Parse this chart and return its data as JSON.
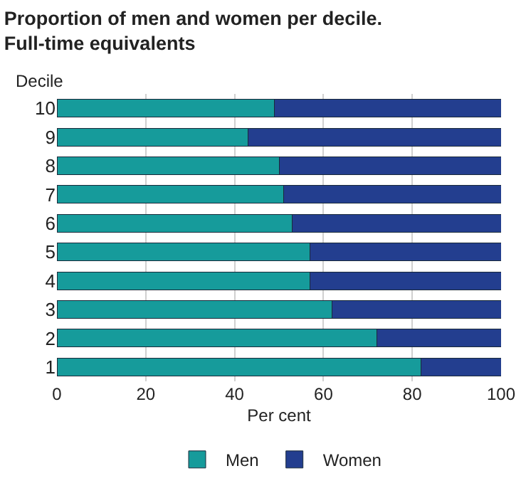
{
  "chart_data": {
    "type": "bar",
    "orientation": "horizontal",
    "stacked": true,
    "title": "Proportion of men and women per decile. Full-time equivalents",
    "xlabel": "Per cent",
    "ylabel": "Decile",
    "categories": [
      "10",
      "9",
      "8",
      "7",
      "6",
      "5",
      "4",
      "3",
      "2",
      "1"
    ],
    "series": [
      {
        "name": "Men",
        "color": "#169b9b",
        "values": [
          49,
          43,
          50,
          51,
          53,
          57,
          57,
          62,
          72,
          82
        ]
      },
      {
        "name": "Women",
        "color": "#233e8f",
        "values": [
          51,
          57,
          50,
          49,
          47,
          43,
          43,
          38,
          28,
          18
        ]
      }
    ],
    "xlim": [
      0,
      100
    ],
    "xticks": [
      0,
      20,
      40,
      60,
      80,
      100
    ],
    "grid": "x",
    "legend": "bottom"
  }
}
